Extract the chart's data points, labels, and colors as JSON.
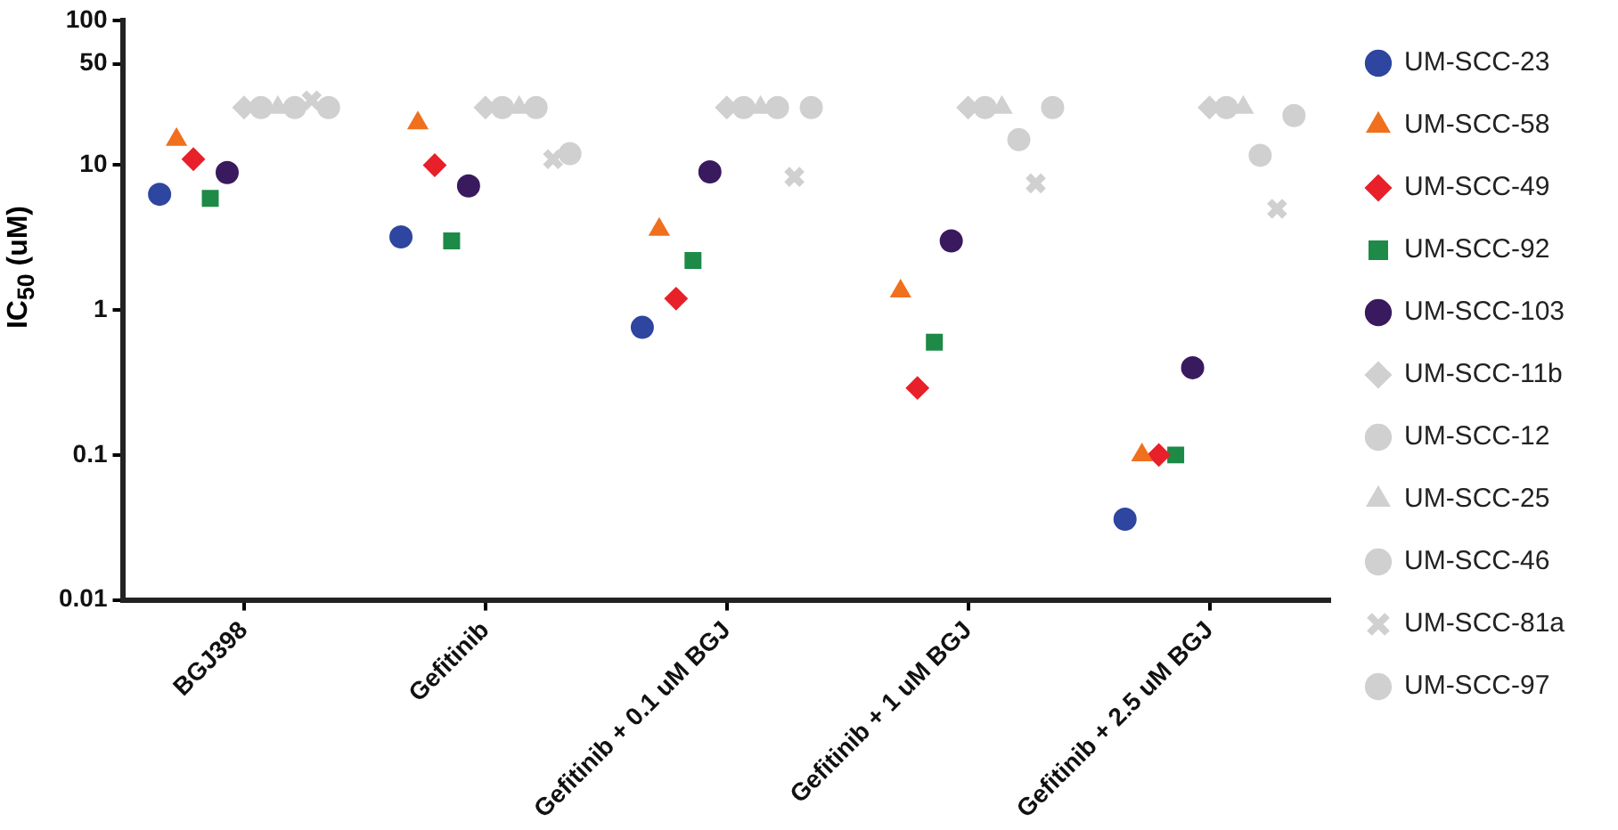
{
  "chart_data": {
    "type": "scatter",
    "ylabel": "IC$_{50}$ (uM)",
    "categories": [
      "BGJ398",
      "Gefitinib",
      "Gefitinib + 0.1 uM BGJ",
      "Gefitinib + 1 uM BGJ",
      "Gefitinib + 2.5 uM BGJ"
    ],
    "log": "y",
    "ylim": [
      0.01,
      100
    ],
    "yticks": [
      0.01,
      0.1,
      1,
      10,
      50,
      100
    ],
    "grid": false,
    "legend": "right",
    "series": [
      {
        "name": "UM-SCC-23",
        "color": "#2e46a0",
        "marker": "circle",
        "values": [
          6.3,
          3.2,
          0.76,
          null,
          0.036
        ]
      },
      {
        "name": "UM-SCC-58",
        "color": "#f0701e",
        "marker": "triangle",
        "values": [
          15,
          19.5,
          3.6,
          1.35,
          0.1
        ]
      },
      {
        "name": "UM-SCC-49",
        "color": "#e8202a",
        "marker": "diamond",
        "values": [
          11,
          10,
          1.2,
          0.29,
          0.1
        ]
      },
      {
        "name": "UM-SCC-92",
        "color": "#1e8a48",
        "marker": "square",
        "values": [
          5.9,
          3,
          2.2,
          0.6,
          0.1
        ]
      },
      {
        "name": "UM-SCC-103",
        "color": "#3a1a5e",
        "marker": "circle",
        "values": [
          8.9,
          7.2,
          9,
          3,
          0.4
        ]
      },
      {
        "name": "UM-SCC-11b",
        "color": "#d0d0d0",
        "marker": "diamond",
        "values": [
          25,
          25,
          25,
          25,
          25
        ]
      },
      {
        "name": "UM-SCC-12",
        "color": "#d0d0d0",
        "marker": "circle",
        "values": [
          25,
          25,
          25,
          25,
          25
        ]
      },
      {
        "name": "UM-SCC-25",
        "color": "#d0d0d0",
        "marker": "triangle",
        "values": [
          25,
          25,
          25,
          25,
          25
        ]
      },
      {
        "name": "UM-SCC-46",
        "color": "#d0d0d0",
        "marker": "circle",
        "values": [
          25,
          25,
          25,
          15,
          11.7
        ]
      },
      {
        "name": "UM-SCC-81a",
        "color": "#d0d0d0",
        "marker": "cross",
        "values": [
          28,
          11,
          8.3,
          7.5,
          5
        ]
      },
      {
        "name": "UM-SCC-97",
        "color": "#d0d0d0",
        "marker": "circle",
        "values": [
          25,
          12,
          25,
          25,
          22
        ]
      }
    ]
  }
}
